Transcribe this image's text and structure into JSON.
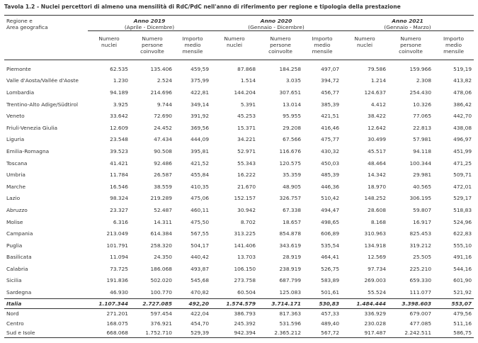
{
  "title": "Tavola 1.2  -  Nuclei percettori di almeno una mensilità di RdC/PdC nell'anno di riferimento per regione e tipologia della prestazione",
  "table": {
    "region_header": "Regione e\nArea geografica",
    "groups": [
      {
        "year": "Anno 2019",
        "period": "(Aprile - Dicembre)"
      },
      {
        "year": "Anno 2020",
        "period": "(Gennaio - Dicembre)"
      },
      {
        "year": "Anno 2021",
        "period": "(Gennaio - Marzo)"
      }
    ],
    "subheaders": [
      "Numero\nnuclei",
      "Numero\npersone\ncoinvolte",
      "Importo\nmedio\nmensile"
    ],
    "rows": [
      [
        "Piemonte",
        "62.535",
        "135.406",
        "459,59",
        "87.868",
        "184.258",
        "497,07",
        "79.586",
        "159.966",
        "519,19"
      ],
      [
        "Valle d'Aosta/Vallée d'Aoste",
        "1.230",
        "2.524",
        "375,99",
        "1.514",
        "3.035",
        "394,72",
        "1.214",
        "2.308",
        "413,82"
      ],
      [
        "Lombardia",
        "94.189",
        "214.696",
        "422,81",
        "144.204",
        "307.651",
        "456,77",
        "124.637",
        "254.430",
        "478,06"
      ],
      [
        "Trentino-Alto Adige/Südtirol",
        "3.925",
        "9.744",
        "349,14",
        "5.391",
        "13.014",
        "385,39",
        "4.412",
        "10.326",
        "386,42"
      ],
      [
        "Veneto",
        "33.642",
        "72.690",
        "391,92",
        "45.253",
        "95.955",
        "421,51",
        "38.422",
        "77.065",
        "442,70"
      ],
      [
        "Friuli-Venezia Giulia",
        "12.609",
        "24.452",
        "369,56",
        "15.371",
        "29.208",
        "416,46",
        "12.642",
        "22.813",
        "438,08"
      ],
      [
        "Liguria",
        "23.548",
        "47.434",
        "444,09",
        "34.221",
        "67.566",
        "475,77",
        "30.499",
        "57.981",
        "496,97"
      ],
      [
        "Emilia-Romagna",
        "39.523",
        "90.508",
        "395,81",
        "52.971",
        "116.676",
        "430,32",
        "45.517",
        "94.118",
        "451,99"
      ],
      [
        "Toscana",
        "41.421",
        "92.486",
        "421,52",
        "55.343",
        "120.575",
        "450,03",
        "48.464",
        "100.344",
        "471,25"
      ],
      [
        "Umbria",
        "11.784",
        "26.587",
        "455,84",
        "16.222",
        "35.359",
        "485,39",
        "14.342",
        "29.981",
        "509,71"
      ],
      [
        "Marche",
        "16.546",
        "38.559",
        "410,35",
        "21.670",
        "48.905",
        "446,36",
        "18.970",
        "40.565",
        "472,01"
      ],
      [
        "Lazio",
        "98.324",
        "219.289",
        "475,06",
        "152.157",
        "326.757",
        "510,42",
        "148.252",
        "306.195",
        "529,17"
      ],
      [
        "Abruzzo",
        "23.327",
        "52.487",
        "460,11",
        "30.942",
        "67.338",
        "494,47",
        "28.608",
        "59.807",
        "518,83"
      ],
      [
        "Molise",
        "6.316",
        "14.311",
        "475,50",
        "8.702",
        "18.657",
        "498,65",
        "8.168",
        "16.917",
        "524,96"
      ],
      [
        "Campania",
        "213.049",
        "614.384",
        "567,55",
        "313.225",
        "854.878",
        "606,89",
        "310.963",
        "825.453",
        "622,83"
      ],
      [
        "Puglia",
        "101.791",
        "258.320",
        "504,17",
        "141.406",
        "343.619",
        "535,54",
        "134.918",
        "319.212",
        "555,10"
      ],
      [
        "Basilicata",
        "11.094",
        "24.350",
        "440,42",
        "13.703",
        "28.919",
        "464,41",
        "12.569",
        "25.505",
        "491,16"
      ],
      [
        "Calabria",
        "73.725",
        "186.068",
        "493,87",
        "106.150",
        "238.919",
        "526,75",
        "97.734",
        "225.210",
        "544,16"
      ],
      [
        "Sicilia",
        "191.836",
        "502.020",
        "545,68",
        "273.758",
        "687.799",
        "583,89",
        "269.003",
        "659.330",
        "601,90"
      ],
      [
        "Sardegna",
        "46.930",
        "100.770",
        "470,82",
        "60.504",
        "125.083",
        "501,61",
        "55.524",
        "111.077",
        "521,92"
      ]
    ],
    "total": [
      "Italia",
      "1.107.344",
      "2.727.085",
      "492,20",
      "1.574.579",
      "3.714.171",
      "530,83",
      "1.484.444",
      "3.398.603",
      "553,07"
    ],
    "areas": [
      [
        "Nord",
        "271.201",
        "597.454",
        "422,04",
        "386.793",
        "817.363",
        "457,33",
        "336.929",
        "679.007",
        "479,56"
      ],
      [
        "Centro",
        "168.075",
        "376.921",
        "454,70",
        "245.392",
        "531.596",
        "489,40",
        "230.028",
        "477.085",
        "511,16"
      ],
      [
        "Sud e Isole",
        "668.068",
        "1.752.710",
        "529,39",
        "942.394",
        "2.365.212",
        "567,72",
        "917.487",
        "2.242.511",
        "586,75"
      ]
    ]
  }
}
